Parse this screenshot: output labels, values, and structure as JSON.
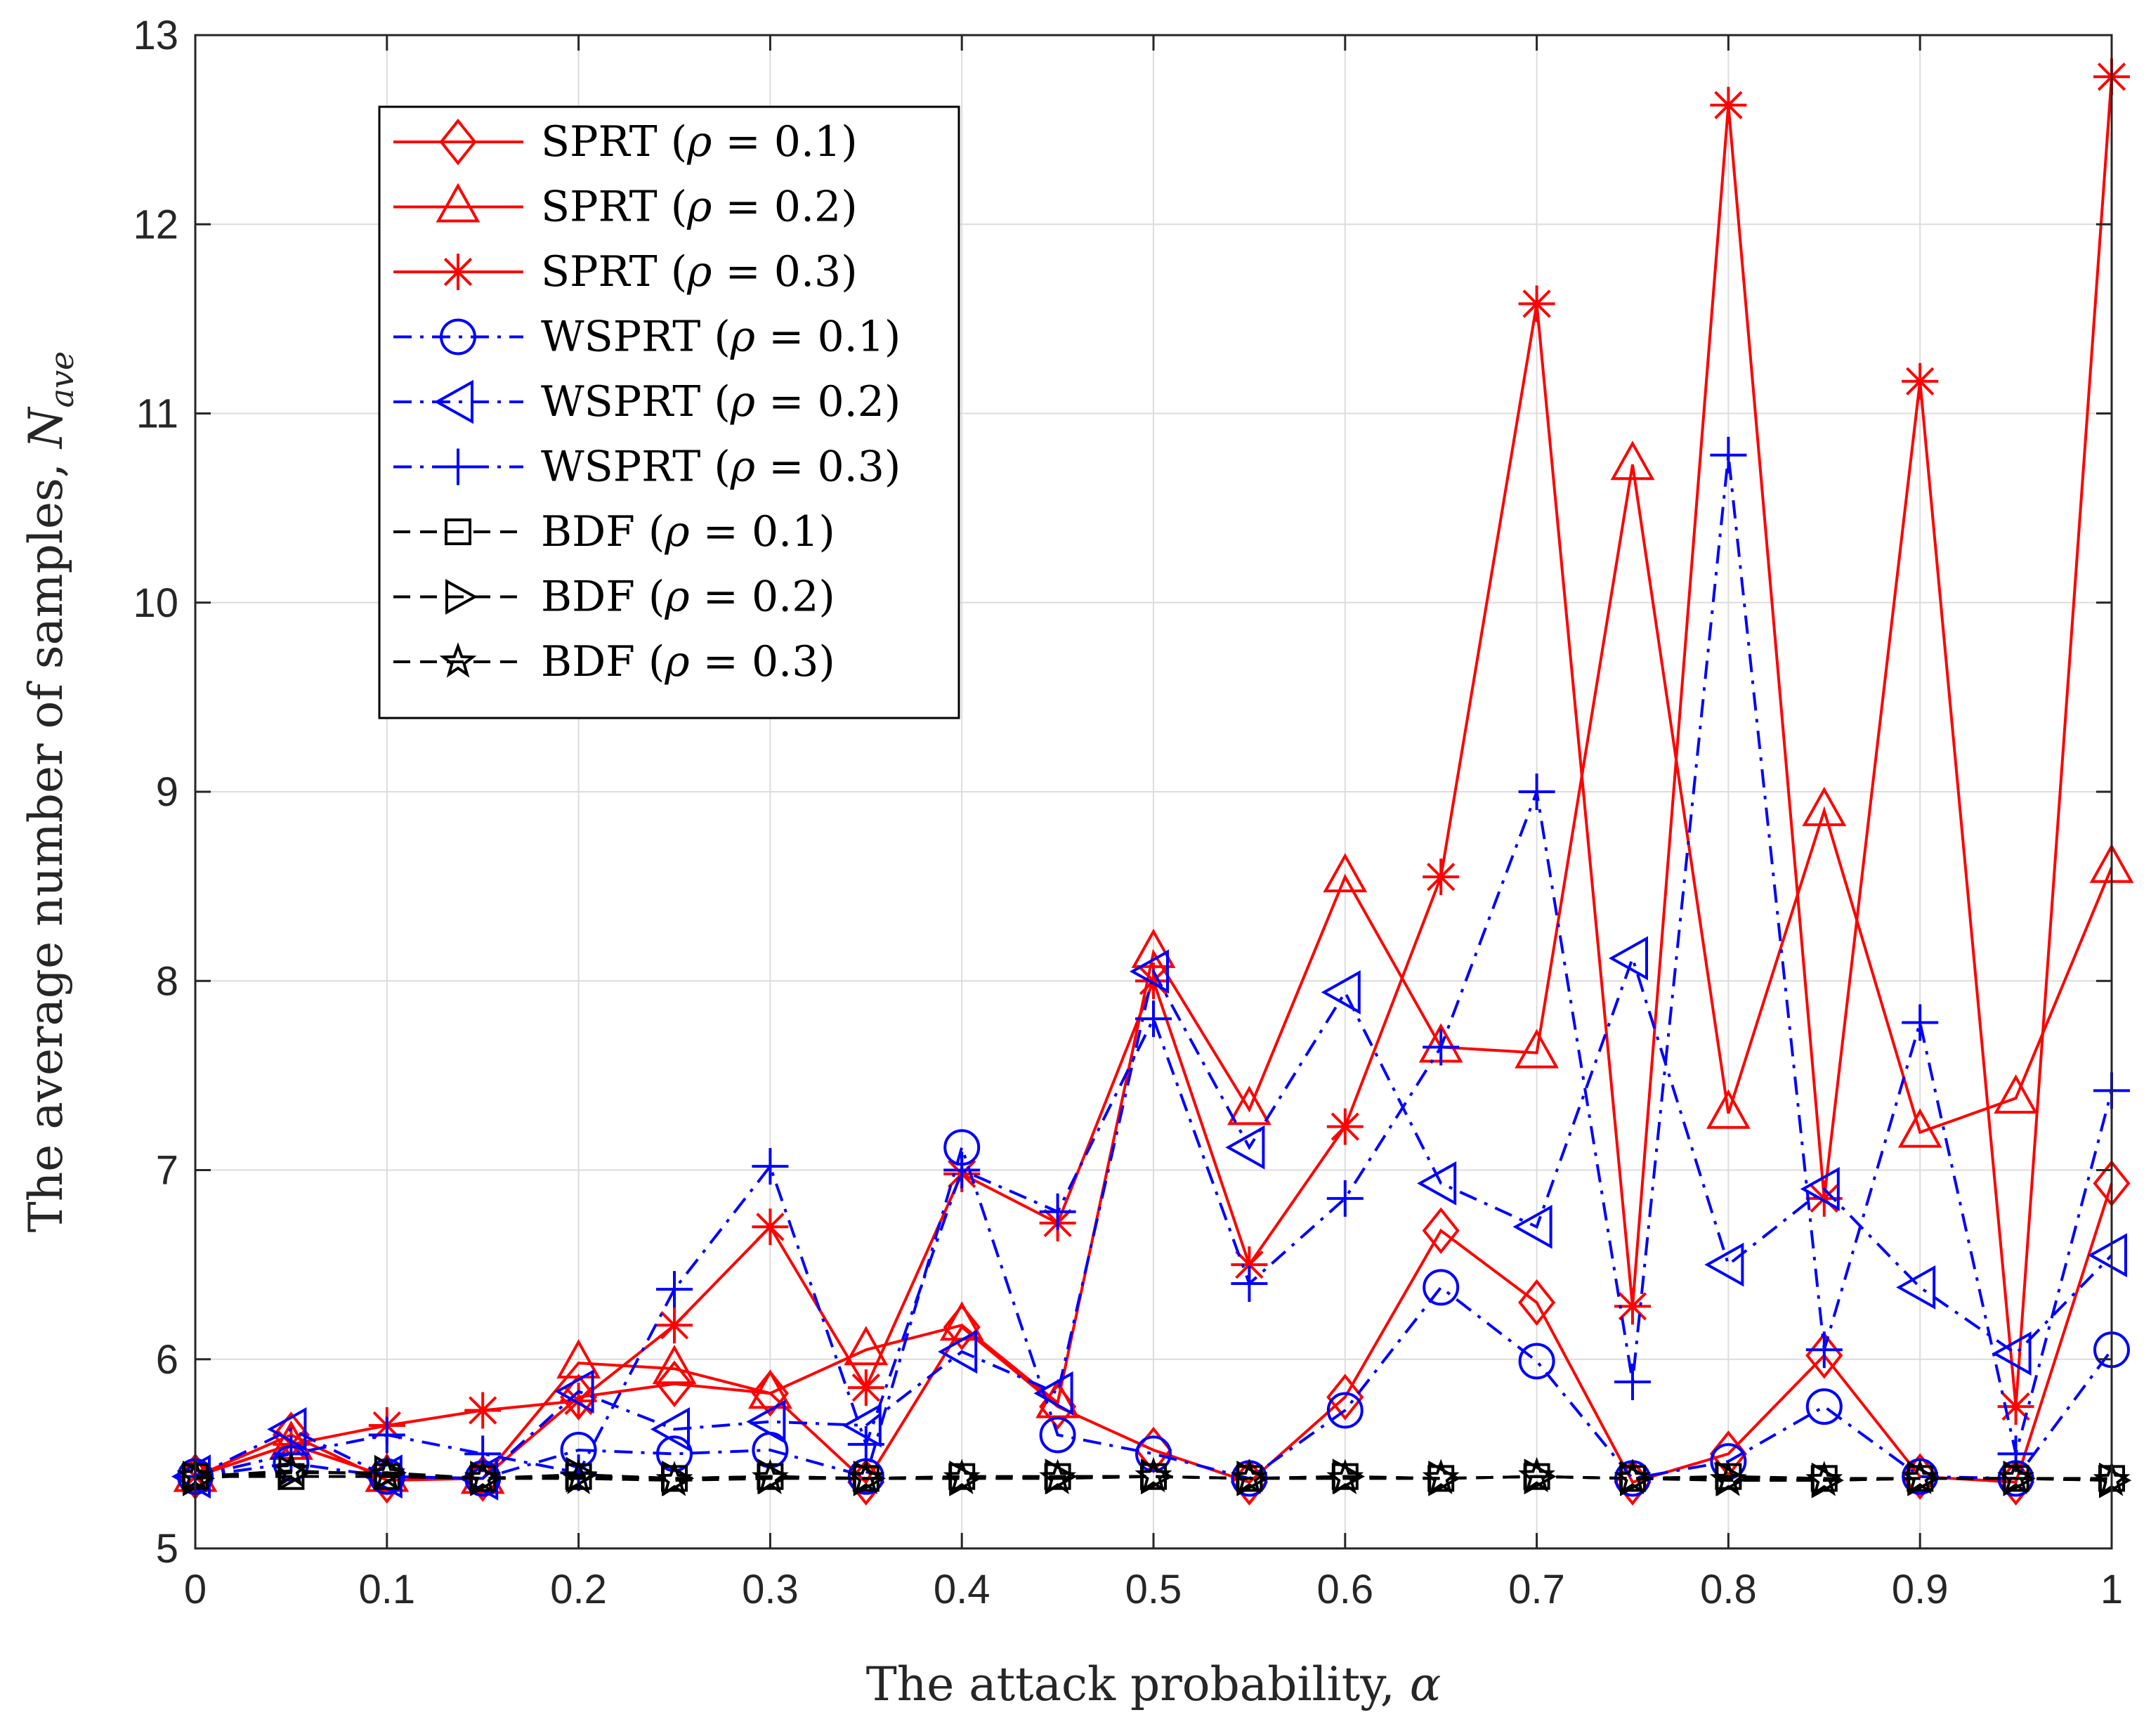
{
  "chart_data": {
    "type": "line",
    "title": "",
    "xlabel": "The attack probability, α",
    "ylabel": "The average number of samples, N_ave",
    "ylabel_main": "The average number of samples, ",
    "ylabel_symbol": "N",
    "ylabel_subscript": "ave",
    "xlabel_main": "The attack probability, ",
    "xlabel_symbol": "α",
    "xlim": [
      0,
      1
    ],
    "ylim": [
      5,
      13
    ],
    "xticks": [
      0,
      0.1,
      0.2,
      0.3,
      0.4,
      0.5,
      0.6,
      0.7,
      0.8,
      0.9,
      1
    ],
    "xtick_labels": [
      "0",
      "0.1",
      "0.2",
      "0.3",
      "0.4",
      "0.5",
      "0.6",
      "0.7",
      "0.8",
      "0.9",
      "1"
    ],
    "yticks": [
      5,
      6,
      7,
      8,
      9,
      10,
      11,
      12,
      13
    ],
    "ytick_labels": [
      "5",
      "6",
      "7",
      "8",
      "9",
      "10",
      "11",
      "12",
      "13"
    ],
    "grid": true,
    "legend_position": "top-left",
    "x": [
      0,
      0.05,
      0.1,
      0.15,
      0.2,
      0.25,
      0.3,
      0.35,
      0.4,
      0.45,
      0.5,
      0.55,
      0.6,
      0.65,
      0.7,
      0.75,
      0.8,
      0.85,
      0.9,
      0.95,
      1
    ],
    "series": [
      {
        "name": "SPRT (ρ = 0.1)",
        "scheme": "SPRT",
        "rho": "0.1",
        "color": "#ff0000",
        "dash": "solid",
        "marker": "diamond",
        "values": [
          5.38,
          5.6,
          5.36,
          5.37,
          5.8,
          5.87,
          5.82,
          5.35,
          6.17,
          5.75,
          5.52,
          5.35,
          5.8,
          6.68,
          6.3,
          5.35,
          5.5,
          6.02,
          5.38,
          5.35,
          6.93
        ]
      },
      {
        "name": "SPRT (ρ = 0.2)",
        "scheme": "SPRT",
        "rho": "0.2",
        "color": "#ff0000",
        "dash": "solid",
        "marker": "triangle-up",
        "values": [
          5.38,
          5.55,
          5.38,
          5.37,
          5.98,
          5.95,
          5.82,
          6.05,
          6.18,
          5.77,
          8.15,
          7.32,
          8.55,
          7.65,
          7.62,
          10.73,
          7.3,
          8.9,
          7.2,
          7.38,
          8.6
        ]
      },
      {
        "name": "SPRT (ρ = 0.3)",
        "scheme": "SPRT",
        "rho": "0.3",
        "color": "#ff0000",
        "dash": "solid",
        "marker": "asterisk",
        "values": [
          5.38,
          5.55,
          5.65,
          5.73,
          5.78,
          6.18,
          6.7,
          5.85,
          6.98,
          6.72,
          8.0,
          6.5,
          7.23,
          8.55,
          11.58,
          6.28,
          12.63,
          6.85,
          11.17,
          5.75,
          12.78
        ]
      },
      {
        "name": "WSPRT (ρ = 0.1)",
        "scheme": "WSPRT",
        "rho": "0.1",
        "color": "#0000ff",
        "dash": "dashdot",
        "marker": "circle",
        "values": [
          5.38,
          5.45,
          5.38,
          5.37,
          5.52,
          5.5,
          5.52,
          5.38,
          7.12,
          5.6,
          5.5,
          5.37,
          5.73,
          6.38,
          5.99,
          5.37,
          5.46,
          5.75,
          5.38,
          5.37,
          6.05
        ]
      },
      {
        "name": "WSPRT (ρ = 0.2)",
        "scheme": "WSPRT",
        "rho": "0.2",
        "color": "#0000ff",
        "dash": "dashdot",
        "marker": "triangle-left",
        "values": [
          5.38,
          5.63,
          5.38,
          5.37,
          5.83,
          5.63,
          5.67,
          5.65,
          6.04,
          5.82,
          8.05,
          7.12,
          7.94,
          6.93,
          6.7,
          8.12,
          6.5,
          6.9,
          6.38,
          6.03,
          6.55
        ]
      },
      {
        "name": "WSPRT (ρ = 0.3)",
        "scheme": "WSPRT",
        "rho": "0.3",
        "color": "#0000ff",
        "dash": "dashdot",
        "marker": "plus",
        "values": [
          5.38,
          5.5,
          5.6,
          5.5,
          5.4,
          6.37,
          7.02,
          5.55,
          7.0,
          6.78,
          7.8,
          6.4,
          6.85,
          7.65,
          9.0,
          5.88,
          10.78,
          6.05,
          7.78,
          5.5,
          7.42
        ]
      },
      {
        "name": "BDF (ρ = 0.1)",
        "scheme": "BDF",
        "rho": "0.1",
        "color": "#000000",
        "dash": "dashed",
        "marker": "square",
        "values": [
          5.38,
          5.38,
          5.38,
          5.37,
          5.38,
          5.37,
          5.38,
          5.37,
          5.38,
          5.38,
          5.38,
          5.37,
          5.38,
          5.37,
          5.38,
          5.37,
          5.38,
          5.37,
          5.37,
          5.37,
          5.37
        ]
      },
      {
        "name": "BDF (ρ = 0.2)",
        "scheme": "BDF",
        "rho": "0.2",
        "color": "#000000",
        "dash": "dashed",
        "marker": "triangle-right",
        "values": [
          5.37,
          5.4,
          5.4,
          5.37,
          5.39,
          5.37,
          5.38,
          5.37,
          5.37,
          5.38,
          5.38,
          5.37,
          5.38,
          5.37,
          5.38,
          5.37,
          5.37,
          5.36,
          5.37,
          5.37,
          5.36
        ]
      },
      {
        "name": "BDF (ρ = 0.3)",
        "scheme": "BDF",
        "rho": "0.3",
        "color": "#000000",
        "dash": "dashed",
        "marker": "star",
        "values": [
          5.38,
          5.41,
          5.39,
          5.37,
          5.37,
          5.36,
          5.37,
          5.37,
          5.37,
          5.37,
          5.38,
          5.37,
          5.37,
          5.37,
          5.38,
          5.37,
          5.36,
          5.36,
          5.37,
          5.37,
          5.36
        ]
      }
    ]
  }
}
